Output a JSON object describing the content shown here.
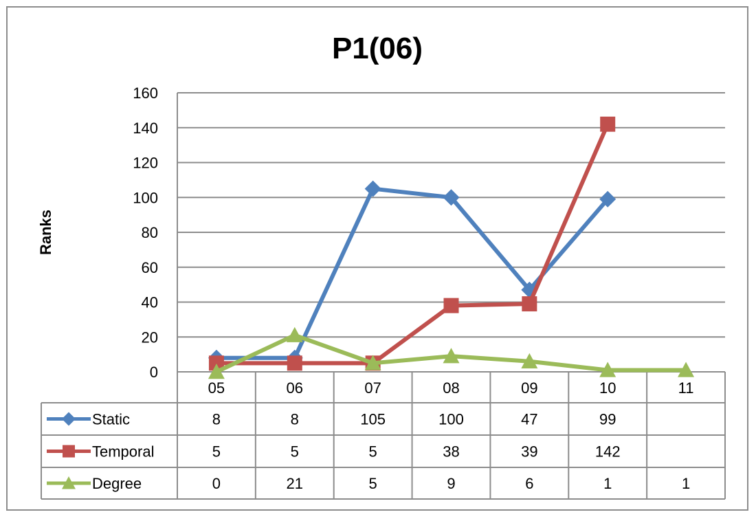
{
  "chart_data": {
    "type": "line",
    "title": "P1(06)",
    "xlabel": "",
    "ylabel": "Ranks",
    "categories": [
      "05",
      "06",
      "07",
      "08",
      "09",
      "10",
      "11"
    ],
    "yticks": [
      "0",
      "20",
      "40",
      "60",
      "80",
      "100",
      "120",
      "140",
      "160"
    ],
    "ylim": [
      0,
      160
    ],
    "grid": true,
    "legend": "data-table-left",
    "series": [
      {
        "name": "Static",
        "color": "#4F81BD",
        "marker": "diamond",
        "values": [
          8,
          8,
          105,
          100,
          47,
          99,
          null
        ]
      },
      {
        "name": "Temporal",
        "color": "#C0504D",
        "marker": "square",
        "values": [
          5,
          5,
          5,
          38,
          39,
          142,
          null
        ]
      },
      {
        "name": "Degree",
        "color": "#9BBB59",
        "marker": "triangle",
        "values": [
          0,
          21,
          5,
          9,
          6,
          1,
          1
        ]
      }
    ]
  }
}
